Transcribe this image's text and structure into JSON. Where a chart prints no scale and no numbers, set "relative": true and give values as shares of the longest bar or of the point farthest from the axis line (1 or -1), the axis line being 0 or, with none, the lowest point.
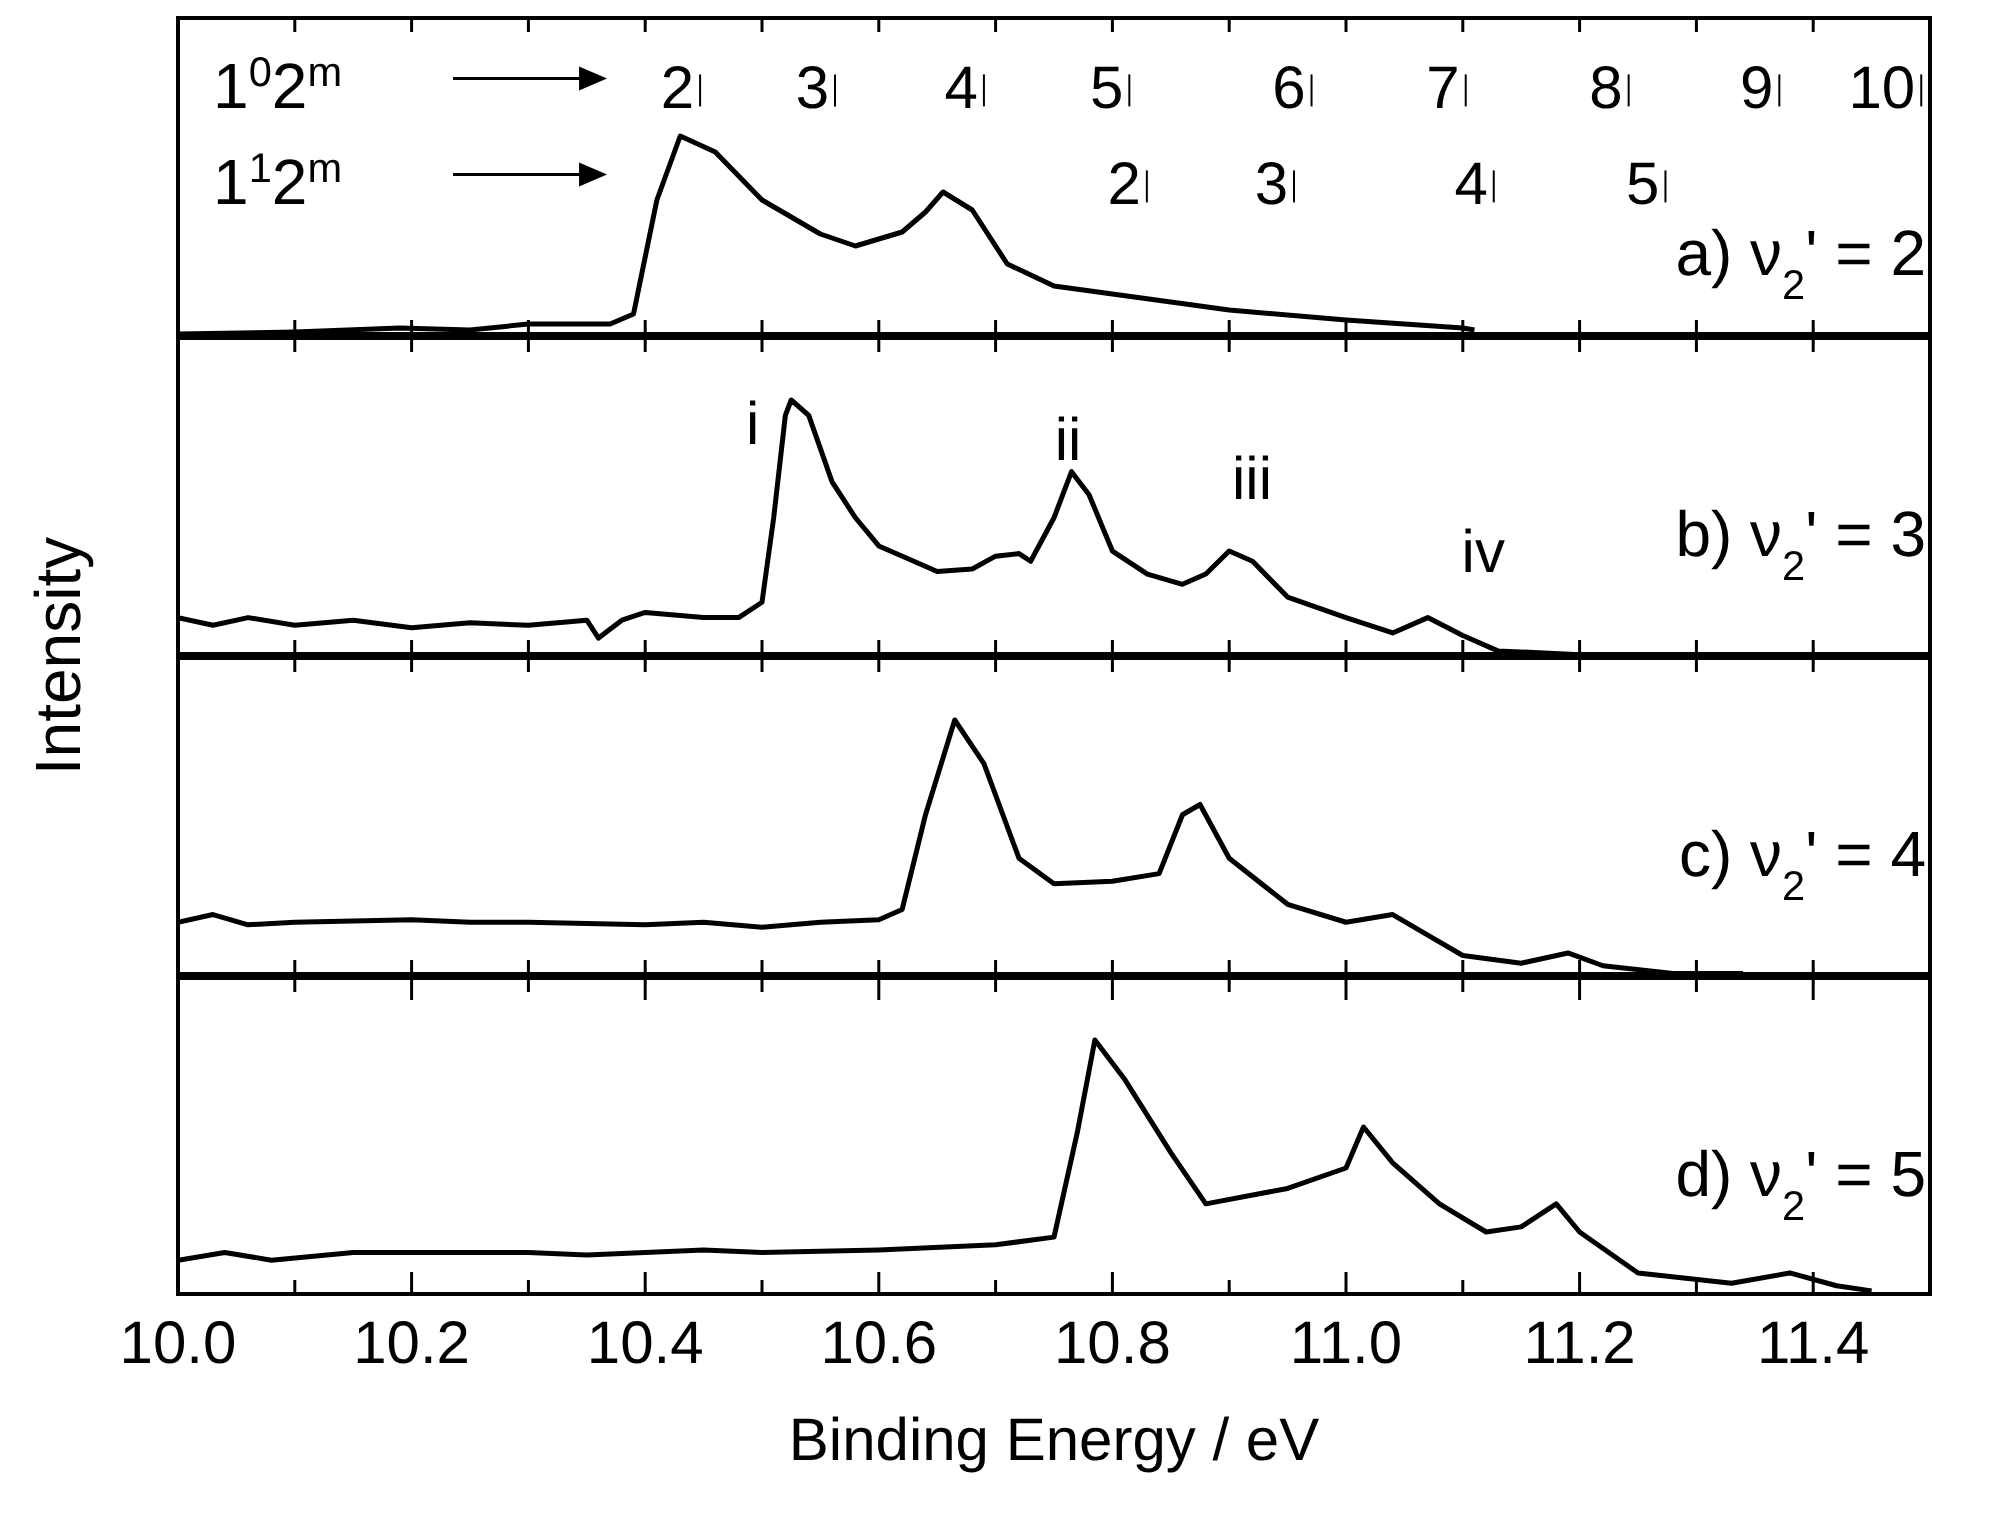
{
  "chart_data": [
    {
      "type": "line",
      "relative": true,
      "color": "#000000",
      "xlim": [
        10.0,
        11.5
      ],
      "tick_labels": false,
      "xticks": [
        {
          "value": 10.0,
          "label": null
        },
        {
          "value": 10.1,
          "label": null
        },
        {
          "value": 10.2,
          "label": null
        },
        {
          "value": 10.3,
          "label": null
        },
        {
          "value": 10.4,
          "label": null
        },
        {
          "value": 10.5,
          "label": null
        },
        {
          "value": 10.6,
          "label": null
        },
        {
          "value": 10.7,
          "label": null
        },
        {
          "value": 10.8,
          "label": null
        },
        {
          "value": 10.9,
          "label": null
        },
        {
          "value": 11.0,
          "label": null
        },
        {
          "value": 11.1,
          "label": null
        },
        {
          "value": 11.2,
          "label": null
        },
        {
          "value": 11.3,
          "label": null
        },
        {
          "value": 11.4,
          "label": null
        }
      ],
      "x": [
        10.0,
        10.1,
        10.19,
        10.25,
        10.3,
        10.37,
        10.39,
        10.41,
        10.43,
        10.46,
        10.5,
        10.55,
        10.58,
        10.62,
        10.64,
        10.655,
        10.68,
        10.71,
        10.75,
        10.8,
        10.9,
        11.0,
        11.1,
        11.11
      ],
      "values": [
        0.01,
        0.02,
        0.04,
        0.03,
        0.06,
        0.06,
        0.11,
        0.68,
        1.0,
        0.92,
        0.68,
        0.51,
        0.45,
        0.52,
        0.62,
        0.72,
        0.63,
        0.36,
        0.25,
        0.21,
        0.13,
        0.08,
        0.04,
        0.03
      ],
      "annotations": [
        "1$^{0}$2$^{m}$",
        "1$^{1}$2$^{m}$",
        "a) ν$_{2}$' = 2",
        "2",
        "3",
        "4",
        "5",
        "6",
        "7",
        "8",
        "9",
        "10",
        "2",
        "3",
        "4",
        "5"
      ]
    },
    {
      "type": "line",
      "relative": true,
      "color": "#000000",
      "xlim": [
        10.0,
        11.5
      ],
      "tick_labels": false,
      "ylabel": "Intensity",
      "xticks": [
        {
          "value": 10.0,
          "label": null
        },
        {
          "value": 10.1,
          "label": null
        },
        {
          "value": 10.2,
          "label": null
        },
        {
          "value": 10.3,
          "label": null
        },
        {
          "value": 10.4,
          "label": null
        },
        {
          "value": 10.5,
          "label": null
        },
        {
          "value": 10.6,
          "label": null
        },
        {
          "value": 10.7,
          "label": null
        },
        {
          "value": 10.8,
          "label": null
        },
        {
          "value": 10.9,
          "label": null
        },
        {
          "value": 11.0,
          "label": null
        },
        {
          "value": 11.1,
          "label": null
        },
        {
          "value": 11.2,
          "label": null
        },
        {
          "value": 11.3,
          "label": null
        },
        {
          "value": 11.4,
          "label": null
        }
      ],
      "x": [
        10.0,
        10.03,
        10.06,
        10.1,
        10.15,
        10.2,
        10.25,
        10.3,
        10.35,
        10.36,
        10.38,
        10.4,
        10.45,
        10.48,
        10.5,
        10.51,
        10.52,
        10.525,
        10.54,
        10.56,
        10.58,
        10.6,
        10.63,
        10.65,
        10.68,
        10.7,
        10.72,
        10.73,
        10.75,
        10.765,
        10.78,
        10.8,
        10.83,
        10.86,
        10.88,
        10.9,
        10.92,
        10.95,
        11.0,
        11.04,
        11.07,
        11.1,
        11.13,
        11.2,
        11.22
      ],
      "values": [
        0.15,
        0.12,
        0.15,
        0.12,
        0.14,
        0.11,
        0.13,
        0.12,
        0.14,
        0.07,
        0.14,
        0.17,
        0.15,
        0.15,
        0.21,
        0.54,
        0.94,
        1.0,
        0.94,
        0.68,
        0.54,
        0.43,
        0.37,
        0.33,
        0.34,
        0.39,
        0.4,
        0.37,
        0.54,
        0.72,
        0.63,
        0.41,
        0.32,
        0.28,
        0.32,
        0.41,
        0.37,
        0.23,
        0.15,
        0.09,
        0.15,
        0.08,
        0.02,
        0.005,
        0.005
      ],
      "annotations": [
        "b) ν$_{2}$' = 3",
        "i",
        "ii",
        "iii",
        "iv"
      ]
    },
    {
      "type": "line",
      "relative": true,
      "color": "#000000",
      "xlim": [
        10.0,
        11.5
      ],
      "tick_labels": false,
      "xticks": [
        {
          "value": 10.0,
          "label": null
        },
        {
          "value": 10.1,
          "label": null
        },
        {
          "value": 10.2,
          "label": null
        },
        {
          "value": 10.3,
          "label": null
        },
        {
          "value": 10.4,
          "label": null
        },
        {
          "value": 10.5,
          "label": null
        },
        {
          "value": 10.6,
          "label": null
        },
        {
          "value": 10.7,
          "label": null
        },
        {
          "value": 10.8,
          "label": null
        },
        {
          "value": 10.9,
          "label": null
        },
        {
          "value": 11.0,
          "label": null
        },
        {
          "value": 11.1,
          "label": null
        },
        {
          "value": 11.2,
          "label": null
        },
        {
          "value": 11.3,
          "label": null
        },
        {
          "value": 11.4,
          "label": null
        }
      ],
      "x": [
        10.0,
        10.03,
        10.06,
        10.1,
        10.2,
        10.25,
        10.3,
        10.4,
        10.45,
        10.5,
        10.55,
        10.6,
        10.62,
        10.64,
        10.665,
        10.69,
        10.72,
        10.75,
        10.8,
        10.84,
        10.86,
        10.875,
        10.9,
        10.95,
        11.0,
        11.04,
        11.07,
        11.1,
        11.15,
        11.19,
        11.22,
        11.28,
        11.34
      ],
      "values": [
        0.21,
        0.24,
        0.2,
        0.21,
        0.22,
        0.21,
        0.21,
        0.2,
        0.21,
        0.19,
        0.21,
        0.22,
        0.26,
        0.63,
        1.0,
        0.83,
        0.46,
        0.36,
        0.37,
        0.4,
        0.63,
        0.67,
        0.46,
        0.28,
        0.21,
        0.24,
        0.16,
        0.08,
        0.05,
        0.09,
        0.04,
        0.01,
        0.01
      ],
      "annotations": [
        "c) ν$_{2}$' = 4"
      ]
    },
    {
      "type": "line",
      "relative": true,
      "color": "#000000",
      "xlim": [
        10.0,
        11.5
      ],
      "tick_labels": "x",
      "xlabel": "Binding Energy / eV",
      "xticks": [
        {
          "value": 10.0,
          "label": "10.0"
        },
        {
          "value": 10.1,
          "label": null
        },
        {
          "value": 10.2,
          "label": "10.2"
        },
        {
          "value": 10.3,
          "label": null
        },
        {
          "value": 10.4,
          "label": "10.4"
        },
        {
          "value": 10.5,
          "label": null
        },
        {
          "value": 10.6,
          "label": "10.6"
        },
        {
          "value": 10.7,
          "label": null
        },
        {
          "value": 10.8,
          "label": "10.8"
        },
        {
          "value": 10.9,
          "label": null
        },
        {
          "value": 11.0,
          "label": "11.0"
        },
        {
          "value": 11.1,
          "label": null
        },
        {
          "value": 11.2,
          "label": "11.2"
        },
        {
          "value": 11.3,
          "label": null
        },
        {
          "value": 11.4,
          "label": "11.4"
        }
      ],
      "x": [
        10.0,
        10.04,
        10.08,
        10.15,
        10.2,
        10.3,
        10.35,
        10.4,
        10.45,
        10.5,
        10.6,
        10.7,
        10.75,
        10.77,
        10.785,
        10.81,
        10.85,
        10.88,
        10.95,
        11.0,
        11.015,
        11.04,
        11.08,
        11.12,
        11.15,
        11.18,
        11.2,
        11.25,
        11.33,
        11.38,
        11.42,
        11.45
      ],
      "values": [
        0.14,
        0.17,
        0.14,
        0.17,
        0.17,
        0.17,
        0.16,
        0.17,
        0.18,
        0.17,
        0.18,
        0.2,
        0.23,
        0.64,
        1.0,
        0.85,
        0.56,
        0.36,
        0.42,
        0.5,
        0.66,
        0.52,
        0.36,
        0.25,
        0.27,
        0.36,
        0.25,
        0.09,
        0.05,
        0.09,
        0.04,
        0.02
      ],
      "annotations": [
        "d) ν$_{2}$' = 5"
      ]
    }
  ]
}
